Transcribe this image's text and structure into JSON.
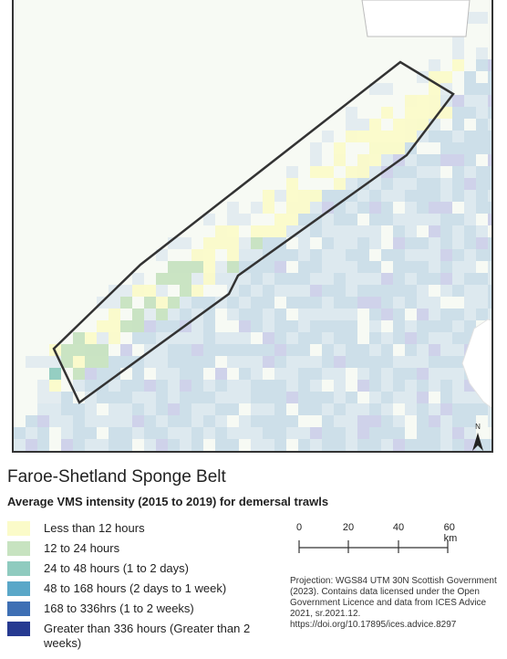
{
  "map": {
    "title": "Faroe-Shetland Sponge Belt",
    "subtitle": "Average VMS intensity (2015 to 2019) for demersal trawls",
    "north_arrow_label": "N",
    "colors": {
      "sea_base": "#f7faf4",
      "outline": "#333333",
      "light_blue": "#dde9ef",
      "mid_blue": "#cddfe9",
      "lavender": "#cfd2ea"
    }
  },
  "legend": {
    "items": [
      {
        "label": "Less than 12 hours",
        "color": "#fbfbc9"
      },
      {
        "label": "12 to 24 hours",
        "color": "#c7e3c0"
      },
      {
        "label": "24 to 48 hours (1 to 2 days)",
        "color": "#8fcbbf"
      },
      {
        "label": "48 to 168 hours (2 days to 1 week)",
        "color": "#5aa7c8"
      },
      {
        "label": "168 to 336hrs (1 to 2 weeks)",
        "color": "#3e6fb4"
      },
      {
        "label": "Greater than 336 hours (Greater than 2 weeks)",
        "color": "#263a91"
      }
    ]
  },
  "scale": {
    "labels": [
      "0",
      "20",
      "40",
      "60 km"
    ]
  },
  "credits": {
    "text": "Projection: WGS84 UTM 30N Scottish Government (2023). Contains data licensed under the Open Government Licence and data from ICES Advice 2021, sr.2021.12. https://doi.org/10.17895/ices.advice.8297"
  }
}
